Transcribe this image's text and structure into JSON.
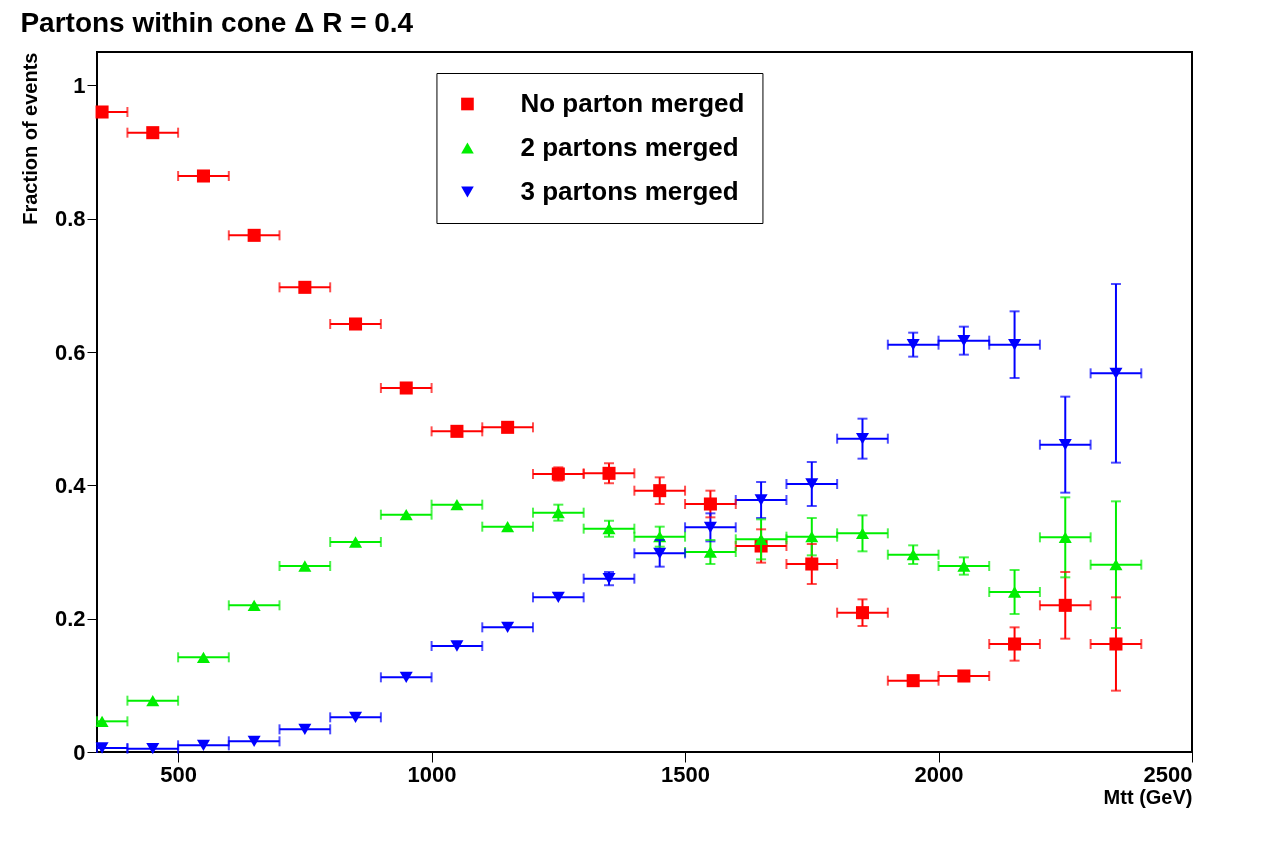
{
  "chart_data": {
    "type": "scatter",
    "title": "Partons within cone Δ R = 0.4",
    "xlabel": "Mtt (GeV)",
    "ylabel": "Fraction of events",
    "x": [
      350,
      450,
      550,
      650,
      750,
      850,
      950,
      1050,
      1150,
      1250,
      1350,
      1450,
      1550,
      1650,
      1750,
      1850,
      1950,
      2050,
      2150,
      2250,
      2350
    ],
    "xlim": [
      340,
      2500
    ],
    "xticks": [
      500,
      1000,
      1500,
      2000,
      2500
    ],
    "ylim": [
      0,
      1.05
    ],
    "yticks": [
      0,
      0.2,
      0.4,
      0.6,
      0.8,
      1
    ],
    "grid": false,
    "legend": "top",
    "series": [
      {
        "name": "No parton merged",
        "color": "#ff0000",
        "marker": "square",
        "values": [
          0.96,
          0.929,
          0.864,
          0.775,
          0.697,
          0.642,
          0.546,
          0.481,
          0.487,
          0.417,
          0.418,
          0.392,
          0.372,
          0.309,
          0.282,
          0.209,
          0.107,
          0.114,
          0.162,
          0.22,
          0.162
        ],
        "errors": [
          null,
          null,
          null,
          null,
          null,
          null,
          null,
          null,
          null,
          0.01,
          0.015,
          0.02,
          0.02,
          0.025,
          0.03,
          0.02,
          0.005,
          0.005,
          0.025,
          0.05,
          0.07
        ],
        "xerrors": [
          [
            340,
            400
          ],
          50,
          50,
          50,
          50,
          50,
          50,
          50,
          50,
          50,
          50,
          50,
          50,
          50,
          50,
          50,
          50,
          50,
          50,
          50,
          50
        ]
      },
      {
        "name": "2 partons merged",
        "color": "#00ee00",
        "marker": "triangle",
        "values": [
          0.046,
          0.077,
          0.142,
          0.22,
          0.279,
          0.315,
          0.356,
          0.371,
          0.338,
          0.359,
          0.335,
          0.323,
          0.3,
          0.319,
          0.323,
          0.328,
          0.296,
          0.279,
          0.24,
          0.322,
          0.281
        ],
        "errors": [
          null,
          null,
          null,
          null,
          null,
          null,
          null,
          null,
          null,
          0.012,
          0.012,
          0.015,
          0.018,
          0.03,
          0.028,
          0.027,
          0.014,
          0.013,
          0.033,
          0.06,
          0.095
        ],
        "xerrors": [
          [
            340,
            400
          ],
          50,
          50,
          50,
          50,
          50,
          50,
          50,
          50,
          50,
          50,
          50,
          50,
          50,
          50,
          50,
          50,
          50,
          50,
          50,
          50
        ]
      },
      {
        "name": "3 partons merged",
        "color": "#0000ff",
        "marker": "triangle-down",
        "values": [
          0.006,
          0.005,
          0.01,
          0.016,
          0.034,
          0.052,
          0.112,
          0.159,
          0.187,
          0.232,
          0.26,
          0.298,
          0.337,
          0.378,
          0.402,
          0.47,
          0.611,
          0.617,
          0.611,
          0.461,
          0.568
        ],
        "errors": [
          null,
          null,
          null,
          null,
          null,
          null,
          null,
          null,
          null,
          null,
          0.01,
          0.02,
          0.021,
          0.027,
          0.033,
          0.03,
          0.018,
          0.021,
          0.05,
          0.072,
          0.134
        ],
        "xerrors": [
          [
            340,
            400
          ],
          50,
          50,
          50,
          50,
          50,
          50,
          50,
          50,
          50,
          50,
          50,
          50,
          50,
          50,
          50,
          50,
          50,
          50,
          50,
          50
        ]
      }
    ]
  }
}
